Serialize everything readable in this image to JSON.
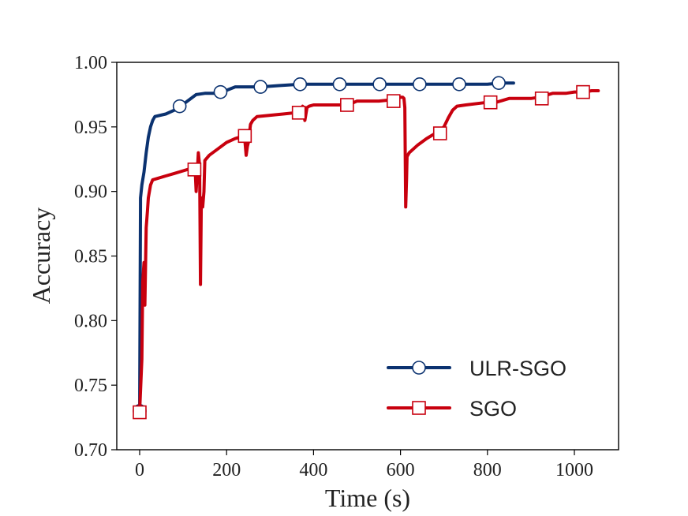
{
  "chart_data": {
    "type": "line",
    "title": "",
    "xlabel": "Time (s)",
    "ylabel": "Accuracy",
    "xlim": [
      -50,
      1100
    ],
    "ylim": [
      0.7,
      1.0
    ],
    "xticks": [
      0,
      200,
      400,
      600,
      800,
      1000
    ],
    "xtick_labels": [
      "0",
      "200",
      "400",
      "600",
      "800",
      "1000"
    ],
    "yticks": [
      0.7,
      0.75,
      0.8,
      0.85,
      0.9,
      0.95,
      1.0
    ],
    "ytick_labels": [
      "0.70",
      "0.75",
      "0.80",
      "0.85",
      "0.90",
      "0.95",
      "1.00"
    ],
    "grid": false,
    "legend_position": "lower-right",
    "series": [
      {
        "name": "ULR-SGO",
        "color": "#0b3270",
        "marker": "circle",
        "x": [
          0,
          2,
          5,
          10,
          15,
          20,
          25,
          30,
          35,
          60,
          80,
          95,
          110,
          130,
          150,
          170,
          190,
          220,
          250,
          280,
          320,
          370,
          400,
          450,
          470,
          520,
          560,
          600,
          650,
          700,
          740,
          800,
          830,
          860
        ],
        "y": [
          0.73,
          0.895,
          0.905,
          0.915,
          0.93,
          0.942,
          0.95,
          0.955,
          0.958,
          0.96,
          0.963,
          0.966,
          0.97,
          0.975,
          0.976,
          0.976,
          0.977,
          0.981,
          0.981,
          0.981,
          0.982,
          0.983,
          0.983,
          0.983,
          0.983,
          0.983,
          0.983,
          0.983,
          0.983,
          0.983,
          0.983,
          0.983,
          0.984,
          0.984
        ],
        "markers_x": [
          0,
          92,
          186,
          278,
          369,
          460,
          552,
          644,
          735,
          826
        ],
        "markers_y": [
          0.73,
          0.966,
          0.977,
          0.981,
          0.983,
          0.983,
          0.983,
          0.983,
          0.983,
          0.984
        ]
      },
      {
        "name": "SGO",
        "color": "#c8000e",
        "marker": "square",
        "x": [
          0,
          5,
          7,
          10,
          12,
          15,
          18,
          20,
          25,
          30,
          40,
          60,
          80,
          100,
          120,
          125,
          128,
          130,
          133,
          135,
          138,
          140,
          142,
          145,
          148,
          150,
          160,
          180,
          200,
          220,
          240,
          242,
          245,
          248,
          250,
          255,
          260,
          270,
          300,
          330,
          360,
          370,
          375,
          378,
          380,
          385,
          390,
          400,
          450,
          480,
          500,
          550,
          580,
          590,
          600,
          605,
          608,
          610,
          612,
          614,
          615,
          620,
          640,
          660,
          680,
          700,
          710,
          720,
          730,
          750,
          800,
          820,
          850,
          900,
          920,
          950,
          980,
          1000,
          1020,
          1040,
          1055
        ],
        "y": [
          0.73,
          0.77,
          0.83,
          0.845,
          0.812,
          0.872,
          0.885,
          0.895,
          0.905,
          0.909,
          0.91,
          0.912,
          0.914,
          0.916,
          0.918,
          0.92,
          0.915,
          0.9,
          0.918,
          0.93,
          0.92,
          0.828,
          0.895,
          0.888,
          0.9,
          0.924,
          0.928,
          0.933,
          0.938,
          0.941,
          0.943,
          0.94,
          0.928,
          0.935,
          0.938,
          0.952,
          0.955,
          0.958,
          0.959,
          0.96,
          0.961,
          0.961,
          0.966,
          0.96,
          0.955,
          0.965,
          0.966,
          0.967,
          0.967,
          0.967,
          0.97,
          0.97,
          0.971,
          0.971,
          0.973,
          0.973,
          0.972,
          0.965,
          0.888,
          0.91,
          0.927,
          0.93,
          0.936,
          0.941,
          0.945,
          0.95,
          0.957,
          0.963,
          0.966,
          0.967,
          0.969,
          0.969,
          0.972,
          0.972,
          0.973,
          0.976,
          0.976,
          0.977,
          0.977,
          0.978,
          0.978
        ],
        "markers_x": [
          0,
          126,
          242,
          366,
          477,
          584,
          691,
          807,
          925,
          1020
        ],
        "markers_y": [
          0.729,
          0.917,
          0.943,
          0.961,
          0.967,
          0.97,
          0.945,
          0.969,
          0.972,
          0.977
        ]
      }
    ]
  }
}
